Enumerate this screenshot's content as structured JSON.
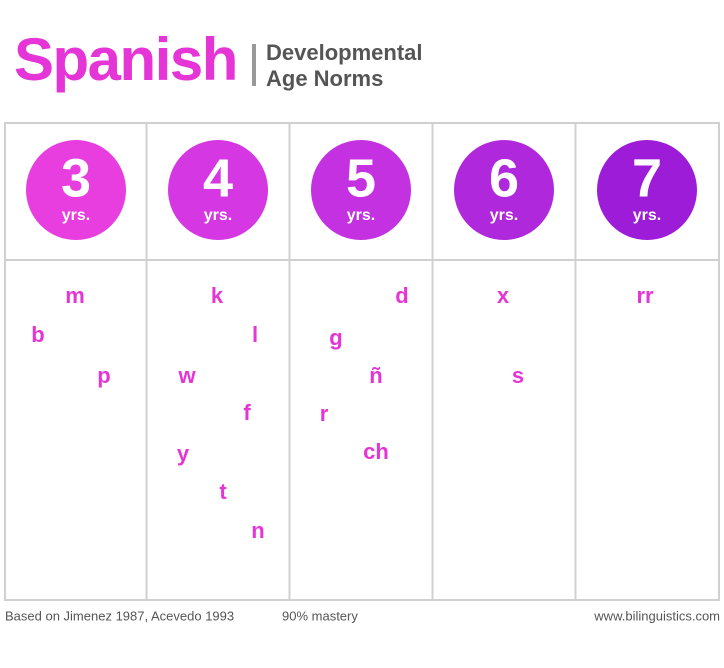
{
  "header": {
    "title": "Spanish",
    "subtitle": [
      "Developmental",
      "Age Norms"
    ]
  },
  "columns": [
    {
      "age": 3,
      "unit": "yrs.",
      "sounds": [
        "m",
        "b",
        "p"
      ]
    },
    {
      "age": 4,
      "unit": "yrs.",
      "sounds": [
        "k",
        "l",
        "w",
        "f",
        "y",
        "t",
        "n"
      ]
    },
    {
      "age": 5,
      "unit": "yrs.",
      "sounds": [
        "d",
        "g",
        "ñ",
        "r",
        "ch"
      ]
    },
    {
      "age": 6,
      "unit": "yrs.",
      "sounds": [
        "x",
        "s"
      ]
    },
    {
      "age": 7,
      "unit": "yrs.",
      "sounds": [
        "rr"
      ]
    }
  ],
  "footer": {
    "source": "Based on Jimenez 1987, Acevedo 1993",
    "criterion": "90% mastery",
    "website": "www.bilinguistics.com"
  }
}
